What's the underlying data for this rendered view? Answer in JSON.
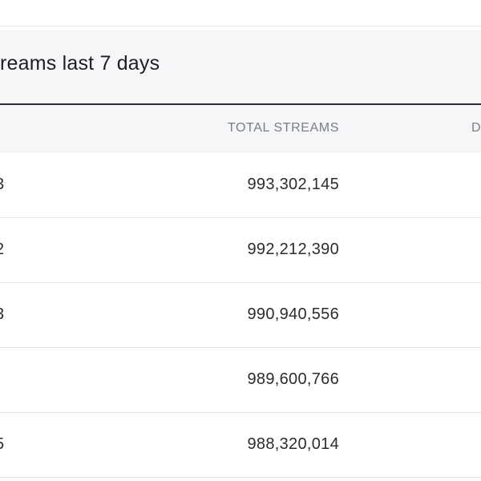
{
  "card": {
    "title": "reams last 7 days"
  },
  "table": {
    "columns": [
      "TOTAL STREAMS",
      "D"
    ],
    "rows": [
      {
        "lead": "3",
        "total_streams": "993,302,145"
      },
      {
        "lead": "2",
        "total_streams": "992,212,390"
      },
      {
        "lead": "3",
        "total_streams": "990,940,556"
      },
      {
        "lead": "",
        "total_streams": "989,600,766"
      },
      {
        "lead": "5",
        "total_streams": "988,320,014"
      }
    ]
  }
}
